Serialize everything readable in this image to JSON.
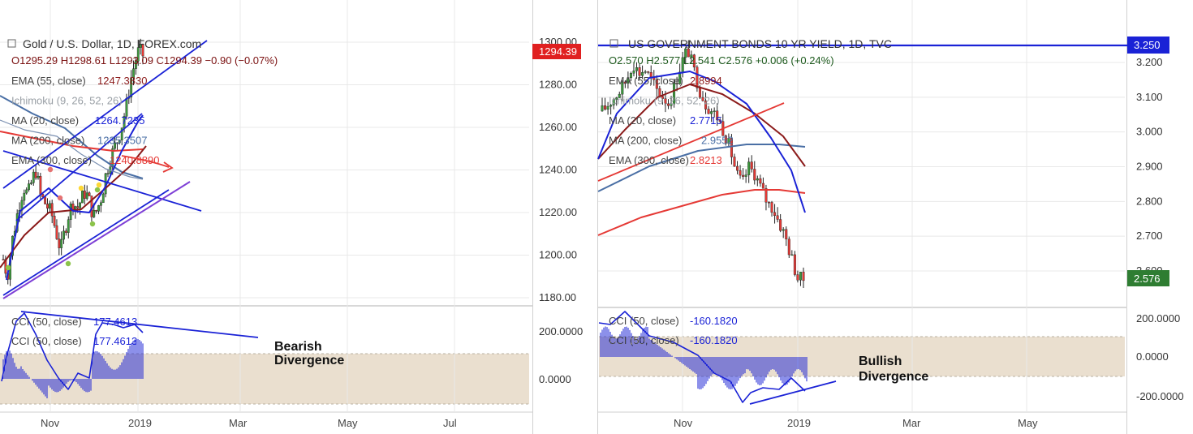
{
  "colors": {
    "up": "#3d9b3d",
    "down": "#e53935",
    "blue": "#1a22d6",
    "maroon": "#8b1a1a",
    "steel": "#4a6fa5",
    "red": "#e53935",
    "purple": "#7e3fd6",
    "band": "#eadfcf",
    "grid": "#e8e8e8",
    "axis": "#555555"
  },
  "panels": [
    {
      "id": "gold",
      "header": {
        "title": "Gold / U.S. Dollar, 1D, FOREX.com",
        "ohlc": "O1295.29  H1298.61  L1293.09  C1294.39  −0.90 (−0.07%)"
      },
      "indicators": [
        {
          "label": "EMA (55, close)",
          "value": "1247.3830",
          "color": "#8b1a1a"
        },
        {
          "label": "Ichimoku (9, 26, 52, 26)",
          "value": "",
          "color": "#9aa0a6"
        },
        {
          "label": "MA (20, close)",
          "value": "1264.7235",
          "color": "#1a22d6"
        },
        {
          "label": "MA (200, close)",
          "value": "1235.3507",
          "color": "#4a6fa5"
        },
        {
          "label": "EMA (300, close)",
          "value": "1240.8890",
          "color": "#e53935"
        }
      ],
      "price_badge": "1294.39",
      "osc_labels": [
        {
          "label": "CCI (50, close)",
          "value": "177.4613"
        },
        {
          "label": "CCI (50, close)",
          "value": "177.4613"
        }
      ],
      "annotation": [
        "Bearish",
        "Divergence"
      ],
      "x_ticks": [
        "Nov",
        "2019",
        "Mar",
        "May",
        "Jul"
      ],
      "price_ticks": [
        "1300.00",
        "1280.00",
        "1260.00",
        "1240.00",
        "1220.00",
        "1200.00",
        "1180.00"
      ],
      "osc_ticks": [
        "200.0000",
        "0.0000"
      ]
    },
    {
      "id": "yield",
      "header": {
        "title": "US GOVERNMENT BONDS 10 YR YIELD, 1D, TVC",
        "ohlc": "O2.570  H2.577  L2.541  C2.576  +0.006 (+0.24%)"
      },
      "indicators": [
        {
          "label": "EMA (55, close)",
          "value": "2.8994",
          "color": "#8b1a1a"
        },
        {
          "label": "Ichimoku (9, 26, 52, 26)",
          "value": "",
          "color": "#9aa0a6"
        },
        {
          "label": "MA (20, close)",
          "value": "2.7715",
          "color": "#1a22d6"
        },
        {
          "label": "MA (200, close)",
          "value": "2.9552",
          "color": "#4a6fa5"
        },
        {
          "label": "EMA (300, close)",
          "value": "2.8213",
          "color": "#e53935"
        }
      ],
      "price_badge": "2.576",
      "level_badge": "3.250",
      "osc_labels": [
        {
          "label": "CCI (50, close)",
          "value": "-160.1820"
        },
        {
          "label": "CCI (50, close)",
          "value": "-160.1820"
        }
      ],
      "annotation": [
        "Bullish",
        "Divergence"
      ],
      "x_ticks": [
        "Nov",
        "2019",
        "Mar",
        "May"
      ],
      "price_ticks": [
        "3.200",
        "3.100",
        "3.000",
        "2.900",
        "2.800",
        "2.700",
        "2.600"
      ],
      "osc_ticks": [
        "200.0000",
        "0.0000",
        "-200.0000"
      ]
    }
  ],
  "chart_data": [
    {
      "type": "candlestick",
      "title": "Gold / U.S. Dollar, 1D, FOREX.com",
      "ylim": [
        1180,
        1300
      ],
      "last_close": 1294.39,
      "series": [
        {
          "name": "EMA (55, close)",
          "last": 1247.383
        },
        {
          "name": "MA (20, close)",
          "last": 1264.7235
        },
        {
          "name": "MA (200, close)",
          "last": 1235.3507
        },
        {
          "name": "EMA (300, close)",
          "last": 1240.889
        },
        {
          "name": "CCI (50, close)",
          "last": 177.4613
        }
      ],
      "close_path": [
        1198,
        1190,
        1205,
        1215,
        1225,
        1232,
        1228,
        1235,
        1240,
        1228,
        1225,
        1222,
        1218,
        1210,
        1202,
        1212,
        1220,
        1225,
        1222,
        1226,
        1230,
        1225,
        1218,
        1222,
        1228,
        1238,
        1245,
        1250,
        1255,
        1262,
        1270,
        1282,
        1290,
        1296,
        1294
      ]
    },
    {
      "type": "candlestick",
      "title": "US GOVERNMENT BONDS 10 YR YIELD, 1D, TVC",
      "ylim": [
        2.55,
        3.27
      ],
      "last_close": 2.576,
      "series": [
        {
          "name": "EMA (55, close)",
          "last": 2.8994
        },
        {
          "name": "MA (20, close)",
          "last": 2.7715
        },
        {
          "name": "MA (200, close)",
          "last": 2.9552
        },
        {
          "name": "EMA (300, close)",
          "last": 2.8213
        },
        {
          "name": "CCI (50, close)",
          "last": -160.182
        }
      ],
      "close_path": [
        3.06,
        3.08,
        3.1,
        3.12,
        3.15,
        3.2,
        3.17,
        3.18,
        3.15,
        3.12,
        3.1,
        3.08,
        3.14,
        3.2,
        3.24,
        3.18,
        3.12,
        3.08,
        3.06,
        3.04,
        3.0,
        2.95,
        2.88,
        2.85,
        2.9,
        2.88,
        2.84,
        2.8,
        2.78,
        2.74,
        2.7,
        2.64,
        2.58,
        2.576
      ]
    }
  ]
}
